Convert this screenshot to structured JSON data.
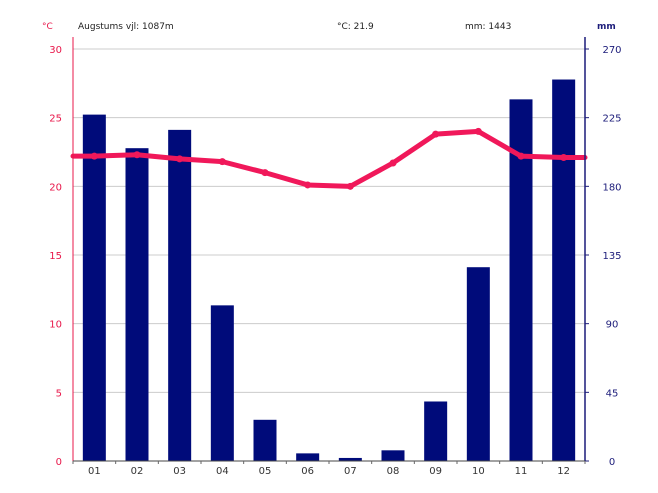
{
  "header": {
    "station": "Augstums vjl: 1087m",
    "avg_temp": "°C: 21.9",
    "total_precip": "mm: 1443",
    "unit_left": "°C",
    "unit_right": "mm"
  },
  "chart_data": {
    "type": "bar+line",
    "title": "",
    "categories": [
      "01",
      "02",
      "03",
      "04",
      "05",
      "06",
      "07",
      "08",
      "09",
      "10",
      "11",
      "12"
    ],
    "series": [
      {
        "name": "mm",
        "type": "bar",
        "axis": "right",
        "color": "#000b7a",
        "values": [
          227,
          205,
          217,
          102,
          27,
          5,
          2,
          7,
          39,
          127,
          237,
          250
        ]
      },
      {
        "name": "°C",
        "type": "line",
        "axis": "left",
        "color": "#f0185a",
        "values": [
          22.2,
          22.3,
          22.0,
          21.8,
          21.0,
          20.1,
          20.0,
          21.7,
          23.8,
          24.0,
          22.2,
          22.1
        ]
      }
    ],
    "y_left": {
      "label": "°C",
      "range": [
        0,
        30
      ],
      "ticks": [
        0,
        5,
        10,
        15,
        20,
        25,
        30
      ]
    },
    "y_right": {
      "label": "mm",
      "range": [
        0,
        270
      ],
      "ticks": [
        0,
        45,
        90,
        135,
        180,
        225,
        270
      ]
    },
    "grid": true,
    "colors": {
      "left_axis": "#e8174a",
      "right_axis": "#1c1c7a",
      "grid": "#cccccc"
    }
  }
}
